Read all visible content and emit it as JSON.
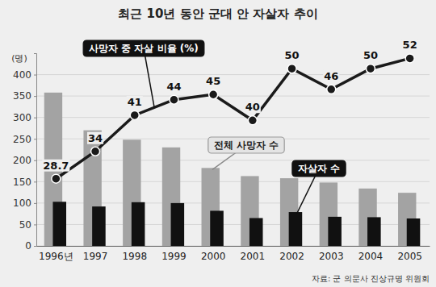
{
  "chart_data": {
    "type": "bar",
    "title": "최근 10년 동안 군대 안 자살자 추이",
    "y_label": "(명)",
    "source": "자료: 군 의문사 진상규명 위원회",
    "categories": [
      "1996년",
      "1997",
      "1998",
      "1999",
      "2000",
      "2001",
      "2002",
      "2003",
      "2004",
      "2005"
    ],
    "ylim": [
      0,
      450
    ],
    "yticks": [
      0,
      50,
      100,
      150,
      200,
      250,
      300,
      350,
      400
    ],
    "y2lim": [
      15.7,
      53
    ],
    "grid": true,
    "series": [
      {
        "name": "전체 사망자 수",
        "type": "bar",
        "color": "#a3a3a3",
        "values": [
          358,
          270,
          248,
          230,
          182,
          163,
          158,
          148,
          134,
          124
        ]
      },
      {
        "name": "자살자 수",
        "type": "bar",
        "color": "#111111",
        "values": [
          103,
          92,
          102,
          100,
          82,
          65,
          79,
          68,
          67,
          64
        ]
      },
      {
        "name": "사망자 중 자살 비율 (%)",
        "type": "line",
        "axis": "y2",
        "color": "#1a1a1a",
        "marker": "circle",
        "line_style": "solid",
        "data_labels": true,
        "values": [
          28.7,
          34,
          41,
          44,
          45,
          40,
          50,
          46,
          50,
          52
        ]
      }
    ]
  }
}
